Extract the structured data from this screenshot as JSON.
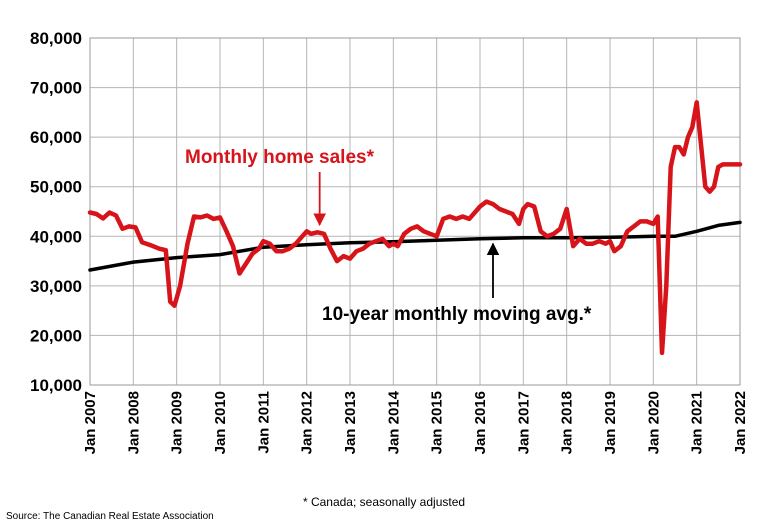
{
  "chart_data": {
    "type": "line",
    "ylim": [
      10000,
      80000
    ],
    "y_ticks": [
      10000,
      20000,
      30000,
      40000,
      50000,
      60000,
      70000,
      80000
    ],
    "y_tick_labels": [
      "10,000",
      "20,000",
      "30,000",
      "40,000",
      "50,000",
      "60,000",
      "70,000",
      "80,000"
    ],
    "x_range": [
      2007.0,
      2022.0
    ],
    "x_tick_labels": [
      "Jan 2007",
      "Jan 2008",
      "Jan 2009",
      "Jan 2010",
      "Jan 2011",
      "Jan 2012",
      "Jan 2013",
      "Jan 2014",
      "Jan 2015",
      "Jan 2016",
      "Jan 2017",
      "Jan 2018",
      "Jan 2019",
      "Jan 2020",
      "Jan 2021",
      "Jan 2022"
    ],
    "grid": true,
    "series": [
      {
        "name": "Monthly home sales*",
        "color": "#d7141a",
        "x": [
          2007.0,
          2007.15,
          2007.3,
          2007.45,
          2007.6,
          2007.75,
          2007.9,
          2008.05,
          2008.2,
          2008.4,
          2008.6,
          2008.75,
          2008.85,
          2008.95,
          2009.08,
          2009.25,
          2009.4,
          2009.55,
          2009.7,
          2009.85,
          2010.0,
          2010.15,
          2010.3,
          2010.45,
          2010.6,
          2010.75,
          2010.9,
          2011.0,
          2011.15,
          2011.3,
          2011.45,
          2011.6,
          2011.75,
          2011.9,
          2012.0,
          2012.1,
          2012.25,
          2012.4,
          2012.55,
          2012.7,
          2012.85,
          2013.0,
          2013.15,
          2013.3,
          2013.45,
          2013.6,
          2013.75,
          2013.9,
          2014.0,
          2014.1,
          2014.25,
          2014.4,
          2014.55,
          2014.7,
          2014.85,
          2015.0,
          2015.15,
          2015.3,
          2015.45,
          2015.6,
          2015.75,
          2015.9,
          2016.0,
          2016.15,
          2016.3,
          2016.45,
          2016.6,
          2016.75,
          2016.9,
          2017.0,
          2017.1,
          2017.25,
          2017.4,
          2017.55,
          2017.7,
          2017.85,
          2018.0,
          2018.15,
          2018.3,
          2018.45,
          2018.6,
          2018.75,
          2018.9,
          2019.0,
          2019.1,
          2019.25,
          2019.4,
          2019.55,
          2019.7,
          2019.85,
          2020.0,
          2020.1,
          2020.2,
          2020.3,
          2020.4,
          2020.5,
          2020.6,
          2020.7,
          2020.8,
          2020.9,
          2021.0,
          2021.1,
          2021.2,
          2021.3,
          2021.4,
          2021.5,
          2021.6,
          2021.7,
          2021.8,
          2021.9,
          2022.0
        ],
        "values": [
          44800,
          44500,
          43600,
          44800,
          44200,
          41500,
          42000,
          41800,
          38800,
          38200,
          37500,
          37200,
          26800,
          26000,
          30000,
          38500,
          44000,
          43800,
          44200,
          43500,
          43800,
          41000,
          38000,
          32500,
          34500,
          36500,
          37500,
          39000,
          38500,
          37000,
          37000,
          37500,
          38500,
          40000,
          41000,
          40500,
          40800,
          40500,
          37500,
          35000,
          36000,
          35500,
          37000,
          37500,
          38500,
          39000,
          39500,
          38000,
          38500,
          38000,
          40500,
          41500,
          42000,
          41000,
          40500,
          40000,
          43500,
          44000,
          43500,
          44000,
          43500,
          45000,
          46000,
          47000,
          46500,
          45500,
          45000,
          44500,
          42500,
          45500,
          46500,
          46000,
          41000,
          40000,
          40500,
          41500,
          45500,
          38000,
          39500,
          38500,
          38500,
          39000,
          38500,
          39000,
          37000,
          38000,
          41000,
          42000,
          43000,
          43000,
          42500,
          44000,
          16500,
          30000,
          54000,
          58000,
          58000,
          56500,
          60000,
          62000,
          67000,
          58500,
          50000,
          49000,
          50000,
          54000,
          54500,
          54500,
          54500,
          54500,
          54500
        ]
      },
      {
        "name": "10-year monthly moving avg.*",
        "color": "#000000",
        "x": [
          2007.0,
          2008.0,
          2009.0,
          2010.0,
          2011.0,
          2012.0,
          2013.0,
          2014.0,
          2015.0,
          2016.0,
          2017.0,
          2018.0,
          2019.0,
          2020.0,
          2020.5,
          2021.0,
          2021.5,
          2022.0
        ],
        "values": [
          33200,
          34800,
          35700,
          36300,
          37800,
          38300,
          38700,
          38900,
          39200,
          39500,
          39700,
          39700,
          39800,
          40000,
          40000,
          41000,
          42200,
          42800
        ]
      }
    ],
    "annotations": [
      {
        "text": "Monthly home sales*",
        "arrow_to": [
          2012.3,
          41500
        ]
      },
      {
        "text": "10-year monthly moving avg.*",
        "arrow_to": [
          2016.3,
          39700
        ]
      }
    ]
  },
  "footnote": "* Canada; seasonally adjusted",
  "source": "Source: The Canadian Real Estate Association"
}
